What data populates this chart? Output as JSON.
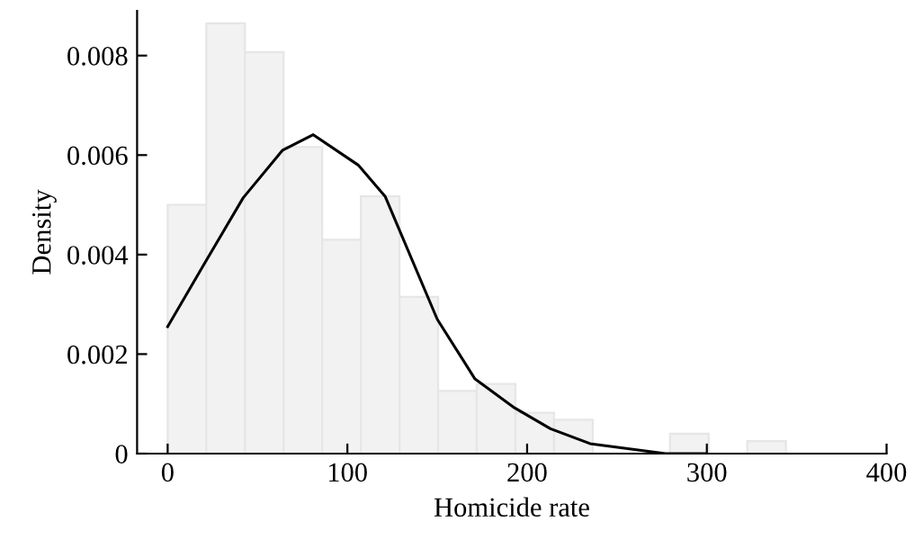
{
  "chart_data": {
    "type": "histogram",
    "xlabel": "Homicide rate",
    "ylabel": "Density",
    "bins": [
      0,
      21.5,
      43,
      64.5,
      86,
      107.5,
      129,
      150.5,
      172,
      193.5,
      215,
      236.5,
      258,
      279.5,
      301,
      322.5,
      344
    ],
    "values": [
      0.005,
      0.00865,
      0.00807,
      0.00616,
      0.0043,
      0.00517,
      0.00315,
      0.00126,
      0.0014,
      0.00082,
      0.00068,
      0,
      0,
      0.0004,
      0,
      0.00025
    ],
    "color": "#f2f2f2",
    "series": [
      {
        "type": "line",
        "color": "#000000",
        "x": [
          0,
          20.5,
          42,
          64,
          81,
          106,
          121,
          150,
          171,
          193,
          213,
          235,
          256,
          277,
          299
        ],
        "values": [
          0.00255,
          0.00382,
          0.00514,
          0.0061,
          0.00641,
          0.0058,
          0.00517,
          0.0027,
          0.0015,
          0.00092,
          0.0005,
          0.0002,
          0.0001,
          0,
          0
        ]
      }
    ],
    "xlim": [
      -17,
      400
    ],
    "xticks": [
      0,
      100,
      200,
      300,
      400
    ],
    "ylim": [
      0,
      0.0089
    ],
    "yticks": [
      0,
      0.002,
      0.004,
      0.006,
      0.008
    ],
    "grid": false,
    "legend": false
  }
}
